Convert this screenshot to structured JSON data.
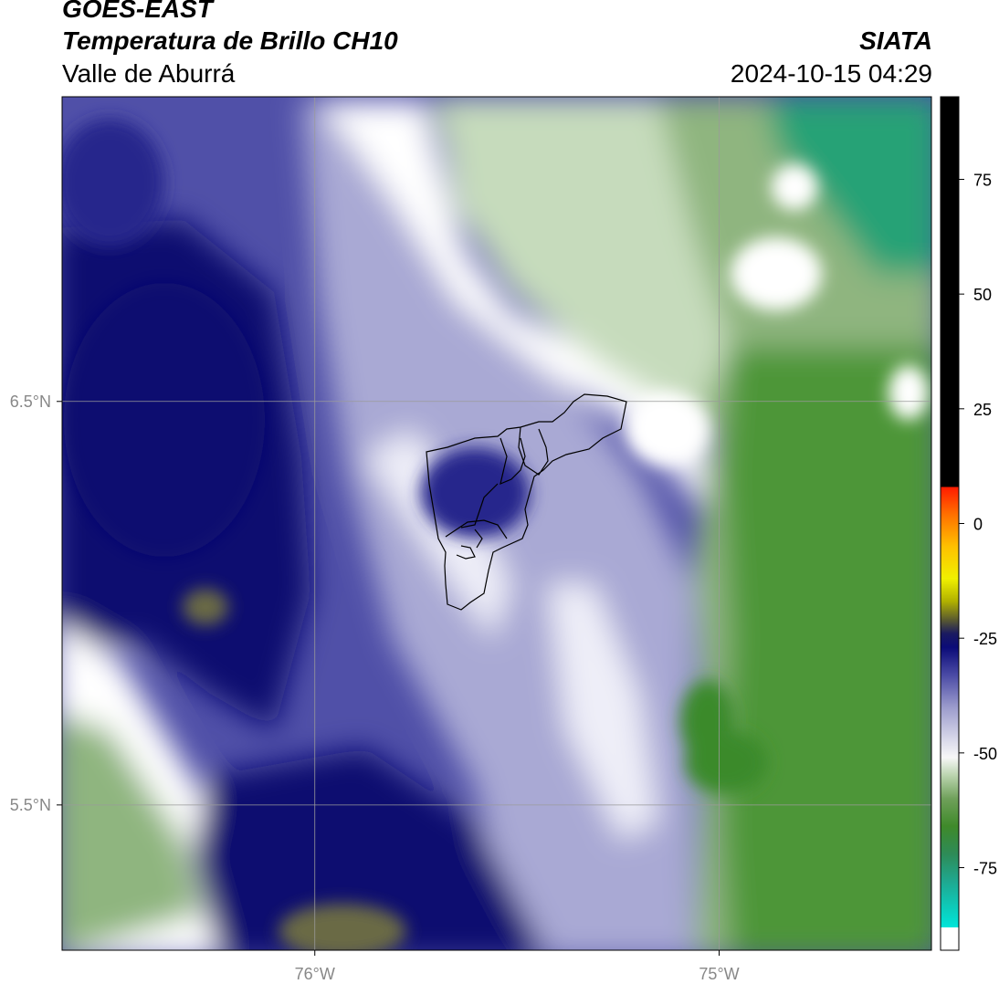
{
  "header": {
    "title": "GOES-EAST",
    "subtitle": "Temperatura de Brillo CH10",
    "region": "Valle de Aburrá",
    "organization": "SIATA",
    "timestamp": "2024-10-15 04:29"
  },
  "map": {
    "lon_range": [
      -76.625,
      -74.475
    ],
    "lat_range": [
      5.14,
      7.255
    ],
    "gridlines": true,
    "grid_color": "#9a9a9a",
    "lon_ticks": [
      {
        "value": -76.0,
        "label": "76°W"
      },
      {
        "value": -75.0,
        "label": "75°W"
      }
    ],
    "lat_ticks": [
      {
        "value": 6.5,
        "label": "6.5°N"
      },
      {
        "value": 5.5,
        "label": "5.5°N"
      }
    ],
    "boundary_color": "#000000"
  },
  "colorbar": {
    "position": "right",
    "range": [
      -93,
      93
    ],
    "ticks": [
      {
        "value": 75,
        "label": "75"
      },
      {
        "value": 50,
        "label": "50"
      },
      {
        "value": 25,
        "label": "25"
      },
      {
        "value": 0,
        "label": "0"
      },
      {
        "value": -25,
        "label": "-25"
      },
      {
        "value": -50,
        "label": "-50"
      },
      {
        "value": -75,
        "label": "-75"
      }
    ],
    "stops": [
      {
        "value": -93,
        "color": "#ffffff"
      },
      {
        "value": -88,
        "color": "#ffffff"
      },
      {
        "value": -88,
        "color": "#00e5d9"
      },
      {
        "value": -78,
        "color": "#1fa890"
      },
      {
        "value": -72,
        "color": "#2e8b57"
      },
      {
        "value": -66,
        "color": "#3f8a2a"
      },
      {
        "value": -60,
        "color": "#6fa05a"
      },
      {
        "value": -55,
        "color": "#b9d3ad"
      },
      {
        "value": -51,
        "color": "#f7f7f7"
      },
      {
        "value": -47,
        "color": "#d8d8ea"
      },
      {
        "value": -40,
        "color": "#9b9bcc"
      },
      {
        "value": -33,
        "color": "#4a4aa5"
      },
      {
        "value": -27,
        "color": "#0b0b78"
      },
      {
        "value": -24,
        "color": "#1a1a60"
      },
      {
        "value": -21,
        "color": "#5a5a30"
      },
      {
        "value": -17,
        "color": "#b0b000"
      },
      {
        "value": -12,
        "color": "#f0f000"
      },
      {
        "value": -5,
        "color": "#ffc000"
      },
      {
        "value": 2,
        "color": "#ff7000"
      },
      {
        "value": 8,
        "color": "#ff1a00"
      },
      {
        "value": 8,
        "color": "#000000"
      },
      {
        "value": 93,
        "color": "#000000"
      }
    ]
  },
  "field_palette": {
    "cold_core": "#0c0c70",
    "deep_blue": "#25258c",
    "mid_blue": "#5050a8",
    "light_blue": "#a9a9d4",
    "pale": "#eeeef8",
    "white": "#ffffff",
    "pale_green": "#c6dbbc",
    "mid_green": "#8fb57f",
    "green": "#4e9638",
    "dark_green": "#3a8a2c",
    "teal": "#27a276",
    "olive": "#6b6a45"
  }
}
